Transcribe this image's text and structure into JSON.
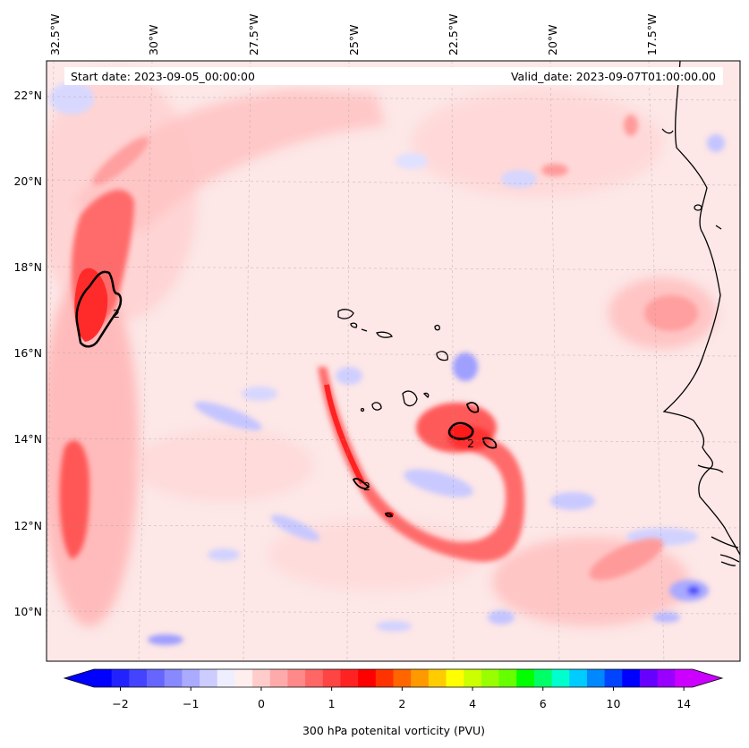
{
  "header": {
    "start_date": "Start date: 2023-09-05_00:00:00",
    "valid_date": "Valid_date: 2023-09-07T01:00:00.00"
  },
  "longitude_labels": [
    "32.5°W",
    "30°W",
    "27.5°W",
    "25°W",
    "22.5°W",
    "20°W",
    "17.5°W"
  ],
  "latitude_labels": [
    "22°N",
    "20°N",
    "18°N",
    "16°N",
    "14°N",
    "12°N",
    "10°N"
  ],
  "colorbar": {
    "title": "300 hPa potenital vorticity (PVU)",
    "tick_labels": [
      "−2",
      "−1",
      "0",
      "1",
      "2",
      "4",
      "6",
      "10",
      "14"
    ],
    "colors": [
      "#0000ff",
      "#2222ff",
      "#4444ff",
      "#6666ff",
      "#8888ff",
      "#aaaaff",
      "#ccccff",
      "#eeeeff",
      "#ffeeee",
      "#ffcccc",
      "#ffaaaa",
      "#ff8888",
      "#ff6666",
      "#ff4444",
      "#ff2222",
      "#ff0000",
      "#ff3300",
      "#ff6600",
      "#ff9900",
      "#ffcc00",
      "#ffff00",
      "#ccff00",
      "#99ff00",
      "#66ff00",
      "#00ff00",
      "#00ff66",
      "#00ffcc",
      "#00ccff",
      "#0088ff",
      "#0044ff",
      "#0000ff",
      "#6600ff",
      "#9900ff",
      "#cc00ff"
    ],
    "contour_label": "2"
  },
  "chart_data": {
    "type": "heatmap",
    "variable": "300 hPa potenital vorticity (PVU)",
    "projection_extent": {
      "lon": [
        -32.8,
        -14.8
      ],
      "lat": [
        8.9,
        22.8
      ]
    },
    "colorbar_levels": [
      -2,
      -1,
      0,
      1,
      2,
      4,
      6,
      10,
      14
    ],
    "contour_level": 2,
    "features": [
      {
        "kind": "pv maximum",
        "lon": -31.7,
        "lat": 17.0,
        "value": "> 2 PVU"
      },
      {
        "kind": "pv maximum",
        "lon": -21.8,
        "lat": 14.0,
        "value": "> 2 PVU"
      },
      {
        "kind": "pv filament",
        "from": [
          -26.0,
          15.0
        ],
        "to": [
          -21.0,
          11.5
        ]
      }
    ]
  }
}
